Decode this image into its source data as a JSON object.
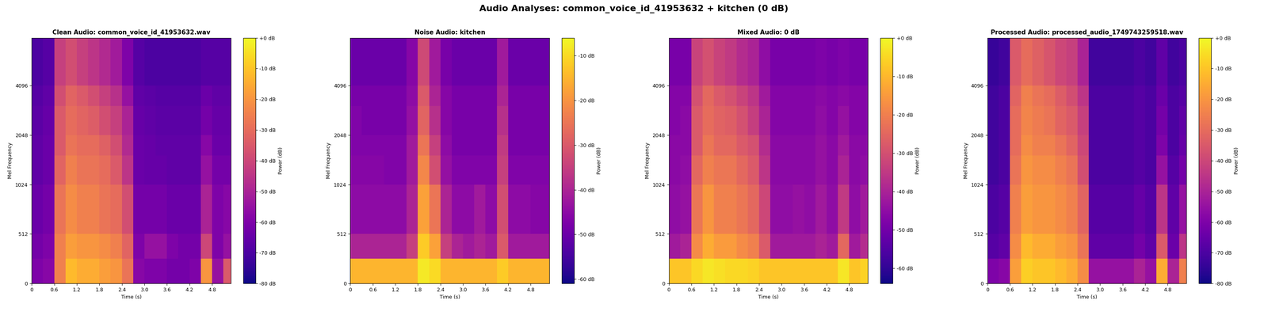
{
  "title": "Audio Analyses: common_voice_id_41953632 + kitchen (0 dB)",
  "chart_data": [
    {
      "type": "heatmap",
      "title": "Clean Audio: common_voice_id_41953632.wav",
      "x_label": "Time (s)",
      "y_label": "Mel Frequency",
      "xlim": [
        0,
        5.3
      ],
      "xticks": [
        0,
        0.6,
        1.2,
        1.8,
        2.4,
        3.0,
        3.6,
        4.2,
        4.8
      ],
      "ylim": [
        0,
        8000
      ],
      "yticks": [
        0,
        512,
        1024,
        2048,
        4096
      ],
      "time_edges": [
        0,
        0.3,
        0.6,
        0.9,
        1.2,
        1.5,
        1.8,
        2.1,
        2.4,
        2.7,
        3.0,
        3.3,
        3.6,
        3.9,
        4.2,
        4.5,
        4.8,
        5.1,
        5.3
      ],
      "freq_edges": [
        0,
        256,
        512,
        1024,
        1536,
        2048,
        3072,
        4096,
        8000
      ],
      "cells": [
        [
          -60,
          -58,
          -25,
          -12,
          -15,
          -15,
          -18,
          -20,
          -28,
          -58,
          -60,
          -60,
          -62,
          -62,
          -60,
          -20,
          -55,
          -35
        ],
        [
          -62,
          -60,
          -25,
          -18,
          -20,
          -20,
          -22,
          -25,
          -32,
          -60,
          -55,
          -55,
          -60,
          -62,
          -62,
          -40,
          -60,
          -55
        ],
        [
          -64,
          -62,
          -28,
          -22,
          -25,
          -25,
          -28,
          -30,
          -38,
          -62,
          -62,
          -62,
          -64,
          -64,
          -64,
          -50,
          -60,
          -58
        ],
        [
          -66,
          -64,
          -32,
          -25,
          -28,
          -28,
          -30,
          -35,
          -45,
          -64,
          -65,
          -65,
          -66,
          -66,
          -66,
          -55,
          -62,
          -62
        ],
        [
          -66,
          -64,
          -35,
          -28,
          -30,
          -30,
          -33,
          -38,
          -48,
          -64,
          -65,
          -66,
          -66,
          -66,
          -66,
          -58,
          -64,
          -64
        ],
        [
          -67,
          -65,
          -35,
          -30,
          -32,
          -34,
          -38,
          -42,
          -50,
          -65,
          -66,
          -67,
          -67,
          -67,
          -67,
          -62,
          -65,
          -65
        ],
        [
          -68,
          -66,
          -38,
          -32,
          -35,
          -38,
          -42,
          -46,
          -55,
          -66,
          -67,
          -68,
          -68,
          -68,
          -68,
          -64,
          -66,
          -66
        ],
        [
          -70,
          -68,
          -42,
          -38,
          -42,
          -45,
          -48,
          -52,
          -60,
          -68,
          -70,
          -70,
          -70,
          -70,
          -70,
          -68,
          -68,
          -68
        ]
      ],
      "colorbar_label": "Power (dB)",
      "colorbar_range": [
        -80,
        0
      ],
      "colorbar_ticks": [
        {
          "value": 0,
          "label": "+0 dB"
        },
        {
          "value": -10,
          "label": "-10 dB"
        },
        {
          "value": -20,
          "label": "-20 dB"
        },
        {
          "value": -30,
          "label": "-30 dB"
        },
        {
          "value": -40,
          "label": "-40 dB"
        },
        {
          "value": -50,
          "label": "-50 dB"
        },
        {
          "value": -60,
          "label": "-60 dB"
        },
        {
          "value": -70,
          "label": "-70 dB"
        },
        {
          "value": -80,
          "label": "-80 dB"
        }
      ]
    },
    {
      "type": "heatmap",
      "title": "Noise Audio: kitchen",
      "x_label": "Time (s)",
      "y_label": "Mel Frequency",
      "xlim": [
        0,
        5.3
      ],
      "xticks": [
        0,
        0.6,
        1.2,
        1.8,
        2.4,
        3.0,
        3.6,
        4.2,
        4.8
      ],
      "ylim": [
        0,
        8000
      ],
      "yticks": [
        0,
        512,
        1024,
        2048,
        4096
      ],
      "time_edges": [
        0,
        0.3,
        0.6,
        0.9,
        1.2,
        1.5,
        1.8,
        2.1,
        2.4,
        2.7,
        3.0,
        3.3,
        3.6,
        3.9,
        4.2,
        4.5,
        4.8,
        5.1,
        5.3
      ],
      "freq_edges": [
        0,
        256,
        512,
        1024,
        1536,
        2048,
        3072,
        4096,
        8000
      ],
      "cells": [
        [
          -15,
          -15,
          -15,
          -15,
          -15,
          -15,
          -8,
          -10,
          -15,
          -15,
          -15,
          -15,
          -15,
          -12,
          -15,
          -15,
          -15,
          -15
        ],
        [
          -40,
          -40,
          -40,
          -40,
          -40,
          -35,
          -12,
          -18,
          -35,
          -40,
          -42,
          -40,
          -42,
          -30,
          -42,
          -42,
          -42,
          -42
        ],
        [
          -45,
          -45,
          -45,
          -45,
          -45,
          -40,
          -18,
          -25,
          -40,
          -45,
          -45,
          -42,
          -45,
          -32,
          -45,
          -45,
          -46,
          -46
        ],
        [
          -46,
          -46,
          -46,
          -47,
          -47,
          -42,
          -22,
          -32,
          -44,
          -47,
          -47,
          -47,
          -47,
          -35,
          -47,
          -47,
          -47,
          -47
        ],
        [
          -47,
          -47,
          -47,
          -47,
          -47,
          -42,
          -25,
          -35,
          -45,
          -48,
          -48,
          -48,
          -48,
          -36,
          -48,
          -48,
          -48,
          -48
        ],
        [
          -47,
          -48,
          -48,
          -48,
          -48,
          -44,
          -28,
          -38,
          -46,
          -48,
          -48,
          -48,
          -48,
          -38,
          -48,
          -48,
          -48,
          -48
        ],
        [
          -48,
          -48,
          -48,
          -48,
          -48,
          -45,
          -30,
          -40,
          -46,
          -48,
          -48,
          -48,
          -48,
          -40,
          -48,
          -48,
          -48,
          -48
        ],
        [
          -50,
          -50,
          -50,
          -50,
          -50,
          -46,
          -33,
          -42,
          -48,
          -50,
          -50,
          -50,
          -50,
          -42,
          -50,
          -50,
          -50,
          -50
        ]
      ],
      "colorbar_label": "Power (dB)",
      "colorbar_range": [
        -61,
        -6
      ],
      "colorbar_ticks": [
        {
          "value": -10,
          "label": "-10 dB"
        },
        {
          "value": -20,
          "label": "-20 dB"
        },
        {
          "value": -30,
          "label": "-30 dB"
        },
        {
          "value": -40,
          "label": "-40 dB"
        },
        {
          "value": -50,
          "label": "-50 dB"
        },
        {
          "value": -60,
          "label": "-60 dB"
        }
      ]
    },
    {
      "type": "heatmap",
      "title": "Mixed Audio: 0 dB",
      "x_label": "Time (s)",
      "y_label": "Mel Frequency",
      "xlim": [
        0,
        5.3
      ],
      "xticks": [
        0,
        0.6,
        1.2,
        1.8,
        2.4,
        3.0,
        3.6,
        4.2,
        4.8
      ],
      "ylim": [
        0,
        8000
      ],
      "yticks": [
        0,
        512,
        1024,
        2048,
        4096
      ],
      "time_edges": [
        0,
        0.3,
        0.6,
        0.9,
        1.2,
        1.5,
        1.8,
        2.1,
        2.4,
        2.7,
        3.0,
        3.3,
        3.6,
        3.9,
        4.2,
        4.5,
        4.8,
        5.1,
        5.3
      ],
      "freq_edges": [
        0,
        256,
        512,
        1024,
        1536,
        2048,
        3072,
        4096,
        8000
      ],
      "cells": [
        [
          -8,
          -8,
          -5,
          -3,
          -4,
          -5,
          -5,
          -6,
          -8,
          -8,
          -8,
          -8,
          -8,
          -8,
          -8,
          -3,
          -8,
          -6
        ],
        [
          -42,
          -40,
          -18,
          -12,
          -15,
          -15,
          -18,
          -20,
          -28,
          -42,
          -42,
          -42,
          -42,
          -40,
          -42,
          -25,
          -42,
          -38
        ],
        [
          -45,
          -44,
          -22,
          -16,
          -20,
          -20,
          -22,
          -25,
          -32,
          -45,
          -45,
          -44,
          -45,
          -42,
          -45,
          -35,
          -45,
          -42
        ],
        [
          -46,
          -45,
          -25,
          -20,
          -22,
          -22,
          -25,
          -28,
          -36,
          -46,
          -46,
          -46,
          -46,
          -44,
          -46,
          -40,
          -46,
          -45
        ],
        [
          -46,
          -46,
          -28,
          -22,
          -25,
          -25,
          -28,
          -30,
          -38,
          -46,
          -46,
          -46,
          -46,
          -44,
          -46,
          -42,
          -46,
          -46
        ],
        [
          -47,
          -46,
          -28,
          -24,
          -26,
          -27,
          -30,
          -34,
          -40,
          -47,
          -47,
          -47,
          -47,
          -45,
          -47,
          -44,
          -47,
          -47
        ],
        [
          -47,
          -47,
          -30,
          -25,
          -28,
          -30,
          -33,
          -36,
          -42,
          -47,
          -47,
          -47,
          -47,
          -46,
          -47,
          -46,
          -47,
          -47
        ],
        [
          -49,
          -49,
          -33,
          -30,
          -33,
          -35,
          -38,
          -40,
          -45,
          -49,
          -49,
          -49,
          -49,
          -48,
          -49,
          -48,
          -49,
          -49
        ]
      ],
      "colorbar_label": "Power (dB)",
      "colorbar_range": [
        -64,
        0
      ],
      "colorbar_ticks": [
        {
          "value": 0,
          "label": "+0 dB"
        },
        {
          "value": -10,
          "label": "-10 dB"
        },
        {
          "value": -20,
          "label": "-20 dB"
        },
        {
          "value": -30,
          "label": "-30 dB"
        },
        {
          "value": -40,
          "label": "-40 dB"
        },
        {
          "value": -50,
          "label": "-50 dB"
        },
        {
          "value": -60,
          "label": "-60 dB"
        }
      ]
    },
    {
      "type": "heatmap",
      "title": "Processed Audio: processed_audio_1749743259518.wav",
      "x_label": "Time (s)",
      "y_label": "Mel Frequency",
      "xlim": [
        0,
        5.3
      ],
      "xticks": [
        0,
        0.6,
        1.2,
        1.8,
        2.4,
        3.0,
        3.6,
        4.2,
        4.8
      ],
      "ylim": [
        0,
        8000
      ],
      "yticks": [
        0,
        512,
        1024,
        2048,
        4096
      ],
      "time_edges": [
        0,
        0.3,
        0.6,
        0.9,
        1.2,
        1.5,
        1.8,
        2.1,
        2.4,
        2.7,
        3.0,
        3.3,
        3.6,
        3.9,
        4.2,
        4.5,
        4.8,
        5.1,
        5.3
      ],
      "freq_edges": [
        0,
        256,
        512,
        1024,
        1536,
        2048,
        3072,
        4096,
        8000
      ],
      "cells": [
        [
          -60,
          -58,
          -18,
          -8,
          -10,
          -10,
          -12,
          -15,
          -22,
          -55,
          -55,
          -55,
          -55,
          -50,
          -55,
          -15,
          -50,
          -25
        ],
        [
          -68,
          -66,
          -22,
          -12,
          -15,
          -15,
          -18,
          -20,
          -28,
          -66,
          -66,
          -66,
          -66,
          -62,
          -66,
          -35,
          -64,
          -45
        ],
        [
          -70,
          -68,
          -25,
          -18,
          -20,
          -20,
          -22,
          -25,
          -32,
          -68,
          -68,
          -68,
          -68,
          -65,
          -68,
          -45,
          -66,
          -55
        ],
        [
          -72,
          -70,
          -28,
          -20,
          -22,
          -22,
          -25,
          -28,
          -38,
          -70,
          -70,
          -70,
          -70,
          -68,
          -70,
          -55,
          -68,
          -62
        ],
        [
          -72,
          -70,
          -30,
          -22,
          -25,
          -25,
          -28,
          -32,
          -40,
          -70,
          -70,
          -70,
          -70,
          -68,
          -70,
          -60,
          -70,
          -65
        ],
        [
          -72,
          -70,
          -30,
          -24,
          -26,
          -28,
          -32,
          -35,
          -42,
          -70,
          -70,
          -70,
          -70,
          -68,
          -70,
          -62,
          -70,
          -66
        ],
        [
          -72,
          -70,
          -32,
          -25,
          -28,
          -30,
          -34,
          -38,
          -45,
          -70,
          -70,
          -70,
          -70,
          -68,
          -70,
          -64,
          -70,
          -68
        ],
        [
          -74,
          -72,
          -35,
          -30,
          -33,
          -36,
          -40,
          -42,
          -50,
          -72,
          -72,
          -72,
          -72,
          -70,
          -72,
          -66,
          -72,
          -70
        ]
      ],
      "colorbar_label": "Power (dB)",
      "colorbar_range": [
        -80,
        0
      ],
      "colorbar_ticks": [
        {
          "value": 0,
          "label": "+0 dB"
        },
        {
          "value": -10,
          "label": "-10 dB"
        },
        {
          "value": -20,
          "label": "-20 dB"
        },
        {
          "value": -30,
          "label": "-30 dB"
        },
        {
          "value": -40,
          "label": "-40 dB"
        },
        {
          "value": -50,
          "label": "-50 dB"
        },
        {
          "value": -60,
          "label": "-60 dB"
        },
        {
          "value": -70,
          "label": "-70 dB"
        },
        {
          "value": -80,
          "label": "-80 dB"
        }
      ]
    }
  ]
}
